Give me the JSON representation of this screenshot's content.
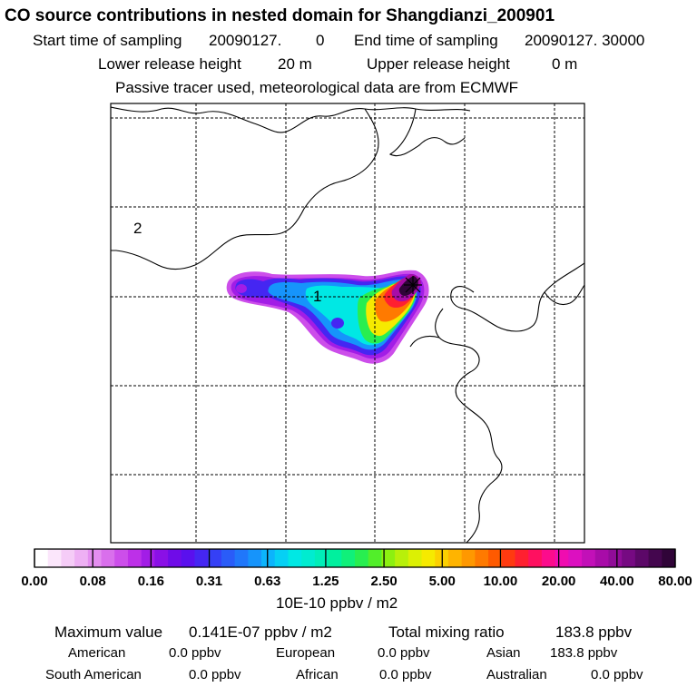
{
  "header": {
    "title": "CO  source contributions in nested domain for Shangdianzi_200901",
    "start_label": "Start time of sampling",
    "start_value": "20090127.",
    "start_time": "0",
    "end_label": "End time of sampling",
    "end_value": "20090127. 30000",
    "lower_label": "Lower release height",
    "lower_value": "20 m",
    "upper_label": "Upper release height",
    "upper_value": "0 m",
    "tracer_note": "Passive tracer used, meteorological data are from ECMWF"
  },
  "chart_data": {
    "type": "heatmap",
    "title": "CO  source contributions in nested domain for Shangdianzi_200901",
    "map_labels": [
      "1",
      "2"
    ],
    "colorbar": {
      "unit": "10E-10 ppbv / m2",
      "tick_labels": [
        "0.00",
        "0.08",
        "0.16",
        "0.31",
        "0.63",
        "1.25",
        "2.50",
        "5.00",
        "10.00",
        "20.00",
        "40.00",
        "80.00"
      ],
      "colors": [
        "#ffffff",
        "#fbe6fb",
        "#f5ccf7",
        "#eeb0f4",
        "#e48ef0",
        "#d96fec",
        "#cc4eea",
        "#bd30e8",
        "#a21de6",
        "#8a10e6",
        "#6f0ce8",
        "#5a10ee",
        "#4526f2",
        "#3540f6",
        "#2a5cf8",
        "#2077fa",
        "#1694fb",
        "#0cb4fc",
        "#06d0f4",
        "#00e8e4",
        "#00ecd0",
        "#00eeb8",
        "#00f09e",
        "#10f07a",
        "#28ee50",
        "#52ee2a",
        "#8cf010",
        "#b8f00a",
        "#dcf004",
        "#f6ea00",
        "#fcd000",
        "#ffb400",
        "#ff9800",
        "#ff7a00",
        "#ff5a00",
        "#ff3a10",
        "#ff2030",
        "#ff1060",
        "#fc0c8c",
        "#f00cb0",
        "#dc10c0",
        "#c210b8",
        "#a80ca8",
        "#900c98",
        "#760a82",
        "#5c0868",
        "#44064e",
        "#300438"
      ]
    },
    "plume_levels": [
      {
        "class": "0.08-0.16",
        "color": "#cc4eea"
      },
      {
        "class": "0.16-0.31",
        "color": "#a21de6"
      },
      {
        "class": "0.31-0.63",
        "color": "#4526f2"
      },
      {
        "class": "0.63-1.25",
        "color": "#1694fb"
      },
      {
        "class": "1.25-2.50",
        "color": "#00e8e4"
      },
      {
        "class": "2.50-5.00",
        "color": "#28ee50"
      },
      {
        "class": "5.00-10.00",
        "color": "#f6ea00"
      },
      {
        "class": "10.00-20.00",
        "color": "#ff7a00"
      },
      {
        "class": "20.00-40.00",
        "color": "#ff2030"
      },
      {
        "class": "40.00-80.00",
        "color": "#a80ca8"
      },
      {
        "class": ">80.00",
        "color": "#300438"
      }
    ]
  },
  "footer": {
    "max_label": "Maximum value",
    "max_value": "0.141E-07 ppbv / m2",
    "total_label": "Total mixing ratio",
    "total_value": "183.8 ppbv",
    "regions": [
      {
        "name": "American",
        "value": "0.0 ppbv"
      },
      {
        "name": "European",
        "value": "0.0 ppbv"
      },
      {
        "name": "Asian",
        "value": "183.8 ppbv"
      },
      {
        "name": "South American",
        "value": "0.0 ppbv"
      },
      {
        "name": "African",
        "value": "0.0 ppbv"
      },
      {
        "name": "Australian",
        "value": "0.0 ppbv"
      }
    ]
  }
}
